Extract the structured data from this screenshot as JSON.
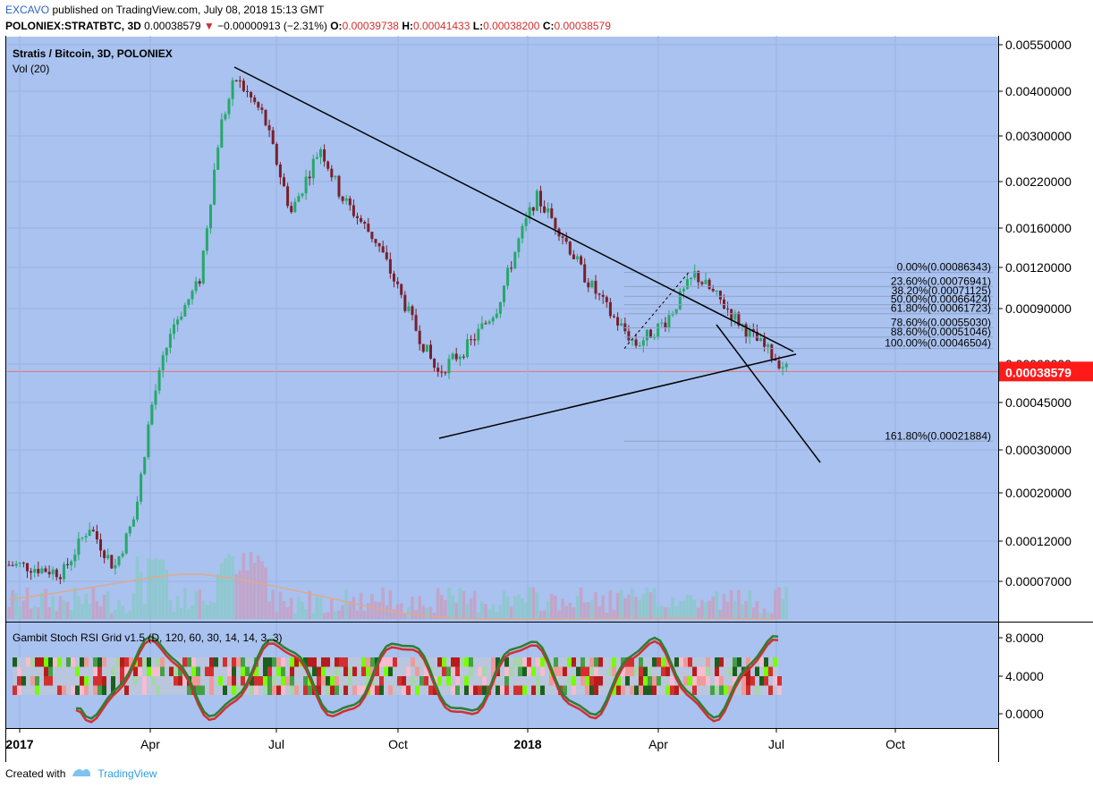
{
  "header": {
    "author": "EXCAVO",
    "published": "published on TradingView.com, July 08, 2018 15:13 GMT",
    "symbol": "POLONIEX:STRATBTC, 3D",
    "last": "0.00038579",
    "change": "−0.00000913 (−2.31%)",
    "o_label": "O:",
    "o_value": "0.00039738",
    "h_label": "H:",
    "h_value": "0.00041433",
    "l_label": "L:",
    "l_value": "0.00038200",
    "c_label": "C:",
    "c_value": "0.00038579"
  },
  "legend": {
    "title": "Stratis / Bitcoin, 3D, POLONIEX",
    "volume": "Vol (20)",
    "indicator": "Gambit Stoch RSI Grid v1.5 (D, 120, 60, 30, 14, 14, 3, 3)"
  },
  "price_axis": [
    "0.00550000",
    "0.00400000",
    "0.00300000",
    "0.00220000",
    "0.00160000",
    "0.00120000",
    "0.00090000",
    "0.00060000",
    "0.00045000",
    "0.00030000",
    "0.00020000",
    "0.00012000",
    "0.00007000"
  ],
  "last_price_label": "0.00038579",
  "indicator_axis": [
    "8.0000",
    "4.0000",
    "0.0000"
  ],
  "time_axis": [
    {
      "label": "2017",
      "bold": true
    },
    {
      "label": "Apr",
      "bold": false
    },
    {
      "label": "Jul",
      "bold": false
    },
    {
      "label": "Oct",
      "bold": false
    },
    {
      "label": "2018",
      "bold": true
    },
    {
      "label": "Apr",
      "bold": false
    },
    {
      "label": "Jul",
      "bold": false
    },
    {
      "label": "Oct",
      "bold": false
    }
  ],
  "fib_levels": [
    {
      "pct": "0.00%",
      "price": "0.00086343"
    },
    {
      "pct": "23.60%",
      "price": "0.00076941"
    },
    {
      "pct": "38.20%",
      "price": "0.00071125"
    },
    {
      "pct": "50.00%",
      "price": "0.00066424"
    },
    {
      "pct": "61.80%",
      "price": "0.00061723"
    },
    {
      "pct": "78.60%",
      "price": "0.00055030"
    },
    {
      "pct": "88.60%",
      "price": "0.00051046"
    },
    {
      "pct": "100.00%",
      "price": "0.00046504"
    },
    {
      "pct": "161.80%",
      "price": "0.00021884"
    }
  ],
  "chart_data": {
    "type": "candlestick",
    "title": "Stratis / Bitcoin, 3D, POLONIEX",
    "y_scale": "log",
    "ylim": [
      4e-05,
      0.0055
    ],
    "x_range": [
      "2017-01-01",
      "2018-10-31"
    ],
    "current_price": 0.00038579,
    "close_path": [
      {
        "date": "2017-01-01",
        "close": 8e-05
      },
      {
        "date": "2017-02-01",
        "close": 7.5e-05
      },
      {
        "date": "2017-02-20",
        "close": 0.00011
      },
      {
        "date": "2017-03-10",
        "close": 7.8e-05
      },
      {
        "date": "2017-03-25",
        "close": 0.00012
      },
      {
        "date": "2017-04-05",
        "close": 0.00028
      },
      {
        "date": "2017-04-20",
        "close": 0.00055
      },
      {
        "date": "2017-05-10",
        "close": 0.0008
      },
      {
        "date": "2017-05-25",
        "close": 0.0028
      },
      {
        "date": "2017-06-05",
        "close": 0.0042
      },
      {
        "date": "2017-06-25",
        "close": 0.0031
      },
      {
        "date": "2017-07-15",
        "close": 0.0014
      },
      {
        "date": "2017-08-05",
        "close": 0.0024
      },
      {
        "date": "2017-08-20",
        "close": 0.0016
      },
      {
        "date": "2017-09-15",
        "close": 0.0011
      },
      {
        "date": "2017-10-10",
        "close": 0.00058
      },
      {
        "date": "2017-10-28",
        "close": 0.00038
      },
      {
        "date": "2017-11-20",
        "close": 0.00048
      },
      {
        "date": "2017-12-10",
        "close": 0.00065
      },
      {
        "date": "2017-12-25",
        "close": 0.0011
      },
      {
        "date": "2018-01-07",
        "close": 0.0016
      },
      {
        "date": "2018-01-25",
        "close": 0.0012
      },
      {
        "date": "2018-02-10",
        "close": 0.00085
      },
      {
        "date": "2018-03-01",
        "close": 0.00062
      },
      {
        "date": "2018-03-20",
        "close": 0.00048
      },
      {
        "date": "2018-04-10",
        "close": 0.00058
      },
      {
        "date": "2018-05-01",
        "close": 0.00085
      },
      {
        "date": "2018-05-20",
        "close": 0.00068
      },
      {
        "date": "2018-06-10",
        "close": 0.00052
      },
      {
        "date": "2018-07-08",
        "close": 0.00038579
      }
    ],
    "stoch_rsi_range": [
      0,
      8
    ]
  }
}
